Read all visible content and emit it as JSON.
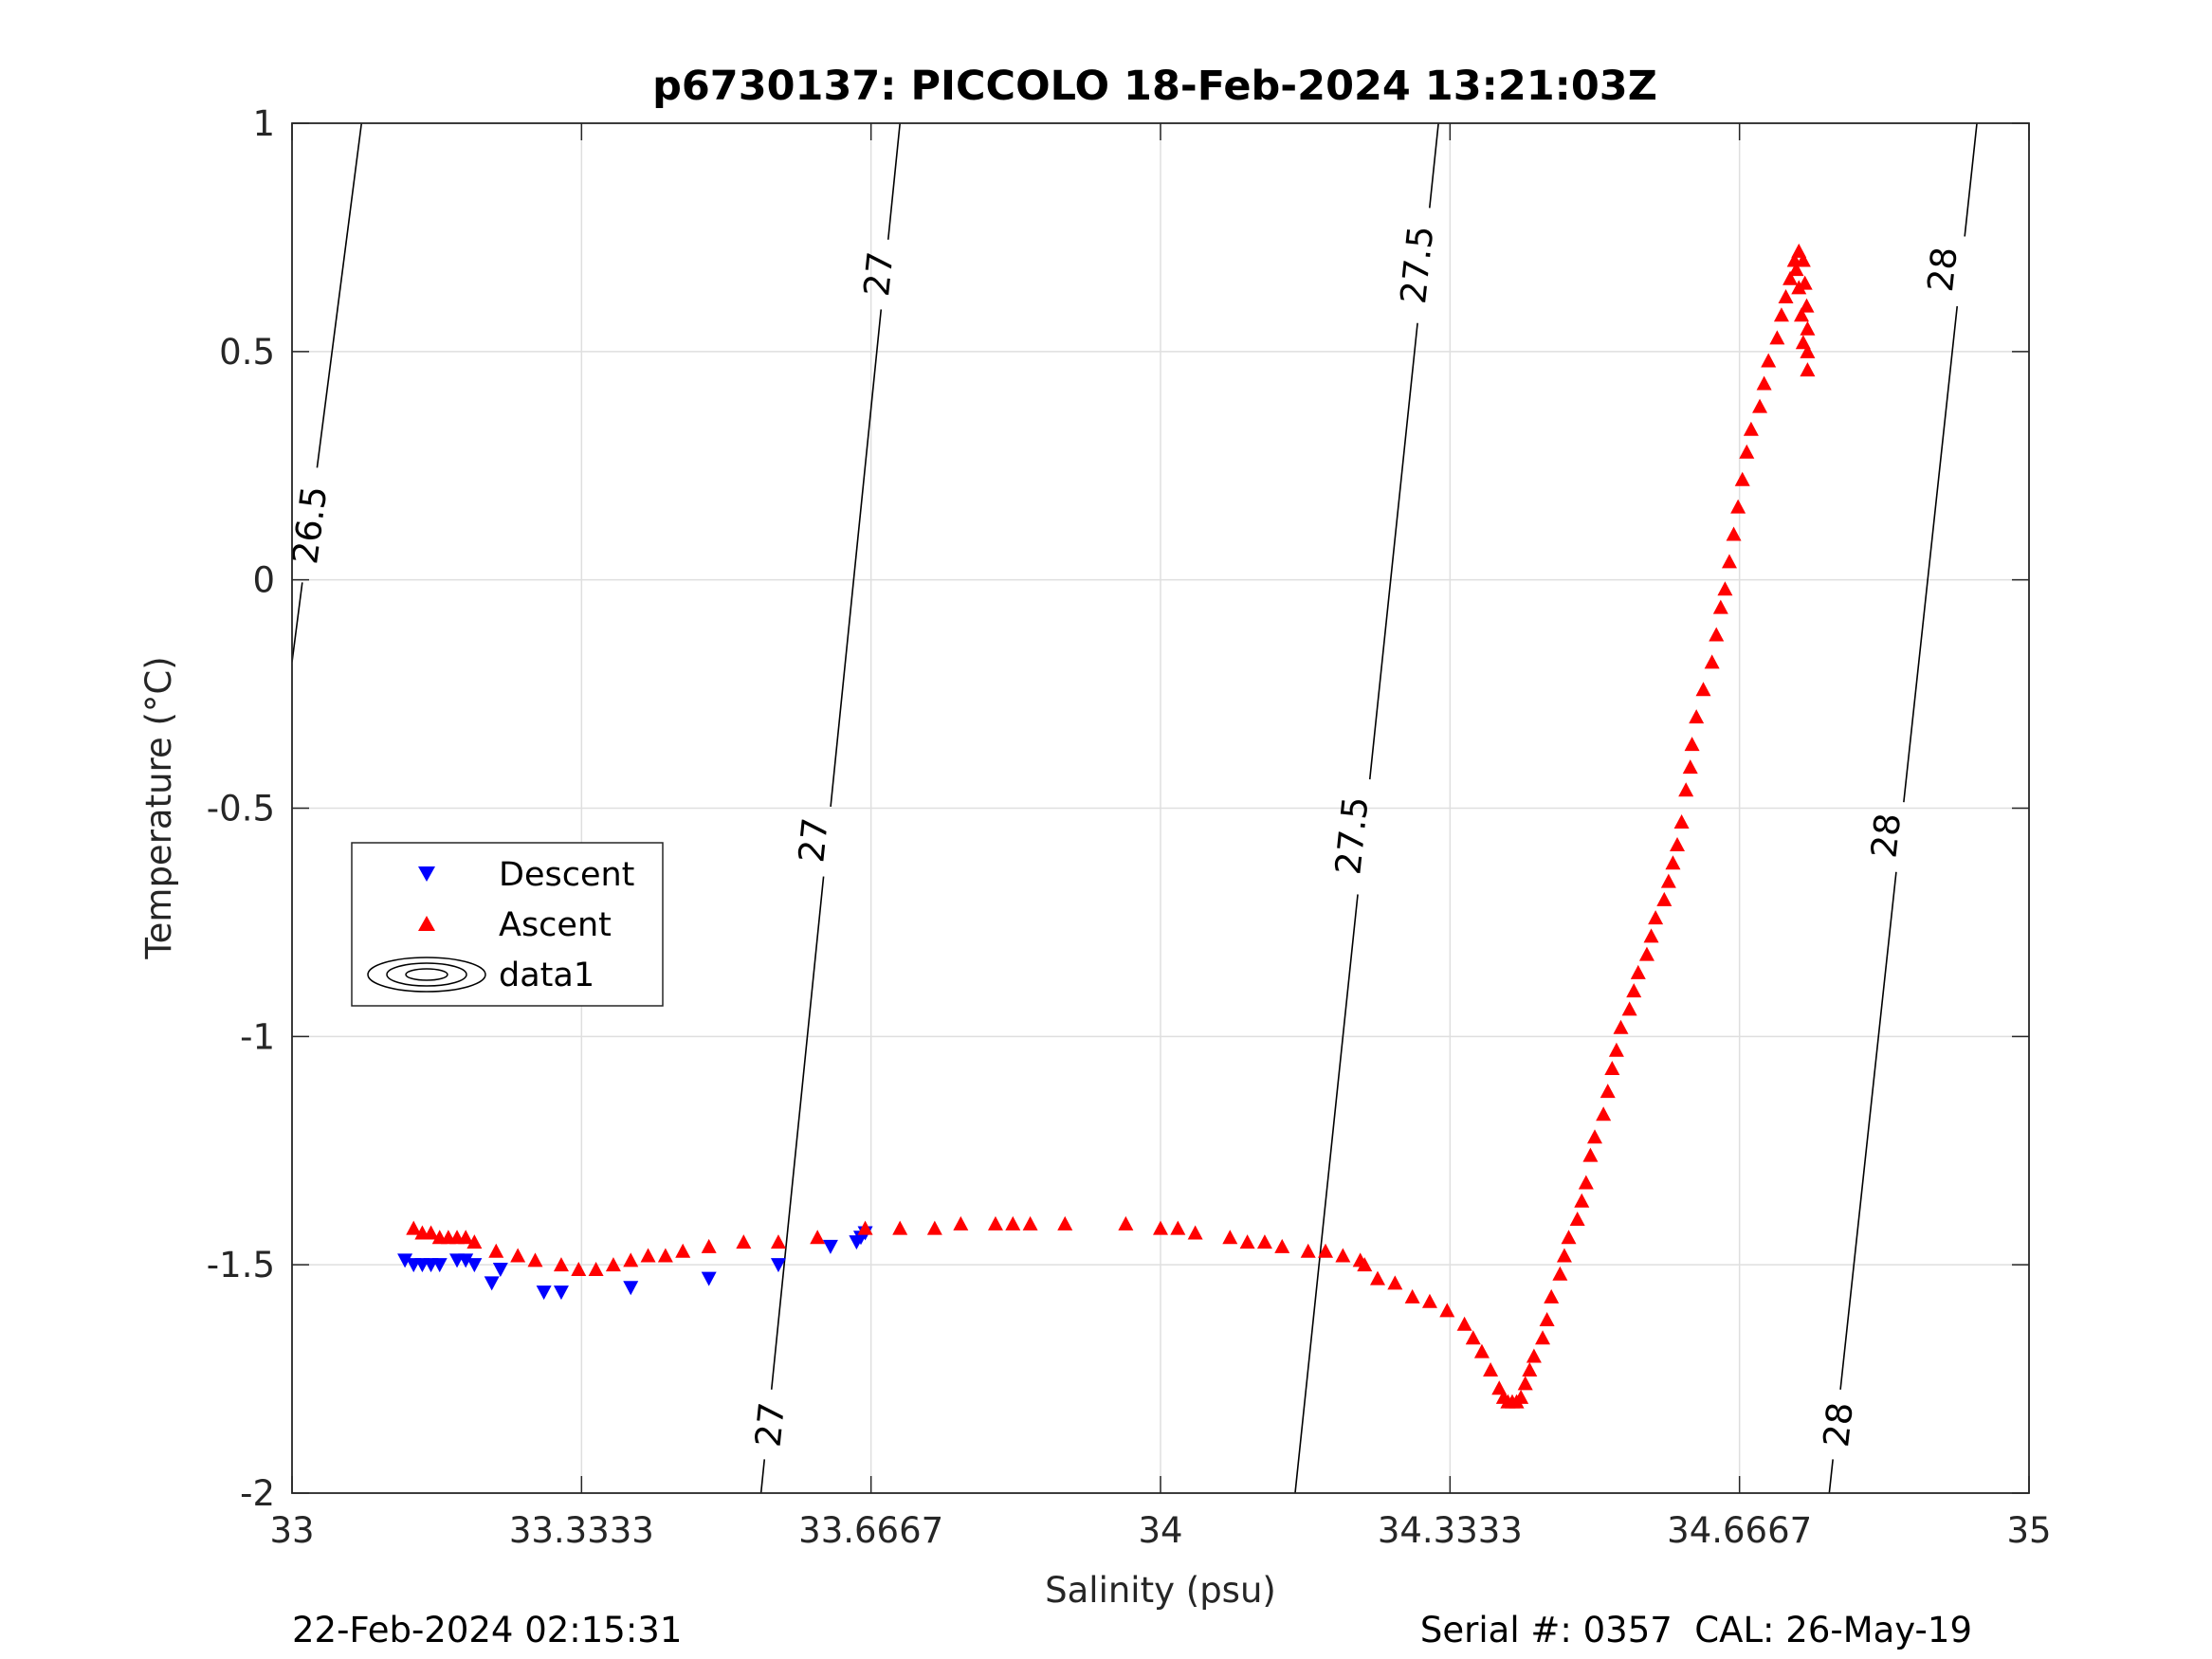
{
  "chart_data": {
    "type": "scatter",
    "title": "p6730137: PICCOLO 18-Feb-2024 13:21:03Z",
    "xlabel": "Salinity (psu)",
    "ylabel": "Temperature (°C)",
    "xlim": [
      33,
      35
    ],
    "ylim": [
      -2,
      1
    ],
    "xticks": [
      "33",
      "33.3333",
      "33.6667",
      "34",
      "34.3333",
      "34.6667",
      "35"
    ],
    "yticks": [
      "1",
      "0.5",
      "0",
      "-0.5",
      "-1",
      "-1.5",
      "-2"
    ],
    "grid": true,
    "legend_position": "left-middle",
    "legend": [
      "Descent",
      "Ascent",
      "data1"
    ],
    "series": [
      {
        "name": "Descent",
        "marker": "triangle-down",
        "color": "#0000ff",
        "points": [
          [
            33.13,
            -1.49
          ],
          [
            33.14,
            -1.5
          ],
          [
            33.15,
            -1.5
          ],
          [
            33.16,
            -1.5
          ],
          [
            33.17,
            -1.5
          ],
          [
            33.19,
            -1.49
          ],
          [
            33.2,
            -1.49
          ],
          [
            33.21,
            -1.5
          ],
          [
            33.23,
            -1.54
          ],
          [
            33.24,
            -1.51
          ],
          [
            33.29,
            -1.56
          ],
          [
            33.31,
            -1.56
          ],
          [
            33.39,
            -1.55
          ],
          [
            33.48,
            -1.53
          ],
          [
            33.56,
            -1.5
          ],
          [
            33.62,
            -1.46
          ],
          [
            33.65,
            -1.45
          ],
          [
            33.655,
            -1.44
          ],
          [
            33.66,
            -1.43
          ]
        ]
      },
      {
        "name": "Ascent",
        "marker": "triangle-up",
        "color": "#ff0000",
        "points": [
          [
            33.14,
            -1.42
          ],
          [
            33.15,
            -1.43
          ],
          [
            33.16,
            -1.43
          ],
          [
            33.17,
            -1.44
          ],
          [
            33.18,
            -1.44
          ],
          [
            33.19,
            -1.44
          ],
          [
            33.2,
            -1.44
          ],
          [
            33.21,
            -1.45
          ],
          [
            33.235,
            -1.47
          ],
          [
            33.26,
            -1.48
          ],
          [
            33.28,
            -1.49
          ],
          [
            33.31,
            -1.5
          ],
          [
            33.33,
            -1.51
          ],
          [
            33.35,
            -1.51
          ],
          [
            33.37,
            -1.5
          ],
          [
            33.39,
            -1.49
          ],
          [
            33.41,
            -1.48
          ],
          [
            33.43,
            -1.48
          ],
          [
            33.45,
            -1.47
          ],
          [
            33.48,
            -1.46
          ],
          [
            33.52,
            -1.45
          ],
          [
            33.56,
            -1.45
          ],
          [
            33.605,
            -1.44
          ],
          [
            33.66,
            -1.42
          ],
          [
            33.7,
            -1.42
          ],
          [
            33.74,
            -1.42
          ],
          [
            33.77,
            -1.41
          ],
          [
            33.81,
            -1.41
          ],
          [
            33.83,
            -1.41
          ],
          [
            33.85,
            -1.41
          ],
          [
            33.89,
            -1.41
          ],
          [
            33.96,
            -1.41
          ],
          [
            34.0,
            -1.42
          ],
          [
            34.02,
            -1.42
          ],
          [
            34.04,
            -1.43
          ],
          [
            34.08,
            -1.44
          ],
          [
            34.1,
            -1.45
          ],
          [
            34.12,
            -1.45
          ],
          [
            34.14,
            -1.46
          ],
          [
            34.17,
            -1.47
          ],
          [
            34.19,
            -1.47
          ],
          [
            34.21,
            -1.48
          ],
          [
            34.23,
            -1.49
          ],
          [
            34.235,
            -1.5
          ],
          [
            34.25,
            -1.53
          ],
          [
            34.27,
            -1.54
          ],
          [
            34.29,
            -1.57
          ],
          [
            34.31,
            -1.58
          ],
          [
            34.33,
            -1.6
          ],
          [
            34.35,
            -1.63
          ],
          [
            34.36,
            -1.66
          ],
          [
            34.37,
            -1.69
          ],
          [
            34.38,
            -1.73
          ],
          [
            34.39,
            -1.77
          ],
          [
            34.395,
            -1.79
          ],
          [
            34.4,
            -1.8
          ],
          [
            34.405,
            -1.8
          ],
          [
            34.41,
            -1.8
          ],
          [
            34.415,
            -1.79
          ],
          [
            34.42,
            -1.76
          ],
          [
            34.425,
            -1.73
          ],
          [
            34.43,
            -1.7
          ],
          [
            34.44,
            -1.66
          ],
          [
            34.445,
            -1.62
          ],
          [
            34.45,
            -1.57
          ],
          [
            34.46,
            -1.52
          ],
          [
            34.465,
            -1.48
          ],
          [
            34.47,
            -1.44
          ],
          [
            34.48,
            -1.4
          ],
          [
            34.485,
            -1.36
          ],
          [
            34.49,
            -1.32
          ],
          [
            34.495,
            -1.26
          ],
          [
            34.5,
            -1.22
          ],
          [
            34.51,
            -1.17
          ],
          [
            34.515,
            -1.12
          ],
          [
            34.52,
            -1.07
          ],
          [
            34.525,
            -1.03
          ],
          [
            34.53,
            -0.98
          ],
          [
            34.54,
            -0.94
          ],
          [
            34.545,
            -0.9
          ],
          [
            34.55,
            -0.86
          ],
          [
            34.56,
            -0.82
          ],
          [
            34.565,
            -0.78
          ],
          [
            34.57,
            -0.74
          ],
          [
            34.58,
            -0.7
          ],
          [
            34.585,
            -0.66
          ],
          [
            34.59,
            -0.62
          ],
          [
            34.595,
            -0.58
          ],
          [
            34.6,
            -0.53
          ],
          [
            34.605,
            -0.46
          ],
          [
            34.61,
            -0.41
          ],
          [
            34.612,
            -0.36
          ],
          [
            34.617,
            -0.3
          ],
          [
            34.625,
            -0.24
          ],
          [
            34.635,
            -0.18
          ],
          [
            34.64,
            -0.12
          ],
          [
            34.645,
            -0.06
          ],
          [
            34.65,
            -0.02
          ],
          [
            34.655,
            0.04
          ],
          [
            34.66,
            0.1
          ],
          [
            34.665,
            0.16
          ],
          [
            34.67,
            0.22
          ],
          [
            34.675,
            0.28
          ],
          [
            34.68,
            0.33
          ],
          [
            34.69,
            0.38
          ],
          [
            34.695,
            0.43
          ],
          [
            34.7,
            0.48
          ],
          [
            34.71,
            0.53
          ],
          [
            34.715,
            0.58
          ],
          [
            34.72,
            0.62
          ],
          [
            34.725,
            0.66
          ],
          [
            34.73,
            0.7
          ],
          [
            34.735,
            0.72
          ],
          [
            34.74,
            0.7
          ],
          [
            34.742,
            0.65
          ],
          [
            34.744,
            0.6
          ],
          [
            34.745,
            0.55
          ],
          [
            34.745,
            0.5
          ],
          [
            34.745,
            0.46
          ],
          [
            34.74,
            0.52
          ],
          [
            34.738,
            0.58
          ],
          [
            34.735,
            0.64
          ],
          [
            34.732,
            0.68
          ]
        ]
      }
    ],
    "contours": [
      {
        "value": "26.5",
        "points": [
          [
            33.0,
            -0.18
          ],
          [
            33.08,
            1.0
          ]
        ],
        "labels": [
          [
            33.02,
            0.12
          ]
        ]
      },
      {
        "value": "27",
        "points": [
          [
            33.54,
            -2.0
          ],
          [
            33.7,
            1.0
          ]
        ],
        "labels": [
          [
            33.55,
            -1.85
          ],
          [
            33.6,
            -0.57
          ],
          [
            33.675,
            0.67
          ]
        ]
      },
      {
        "value": "27.5",
        "points": [
          [
            34.155,
            -2.0
          ],
          [
            34.32,
            1.0
          ]
        ],
        "labels": [
          [
            34.22,
            -0.56
          ],
          [
            34.295,
            0.69
          ]
        ]
      },
      {
        "value": "28",
        "points": [
          [
            34.77,
            -2.0
          ],
          [
            34.94,
            1.0
          ]
        ],
        "labels": [
          [
            34.78,
            -1.85
          ],
          [
            34.835,
            -0.56
          ],
          [
            34.9,
            0.68
          ]
        ]
      }
    ],
    "footer_left": "22-Feb-2024 02:15:31",
    "footer_right": "Serial #: 0357  CAL: 26-May-19"
  }
}
